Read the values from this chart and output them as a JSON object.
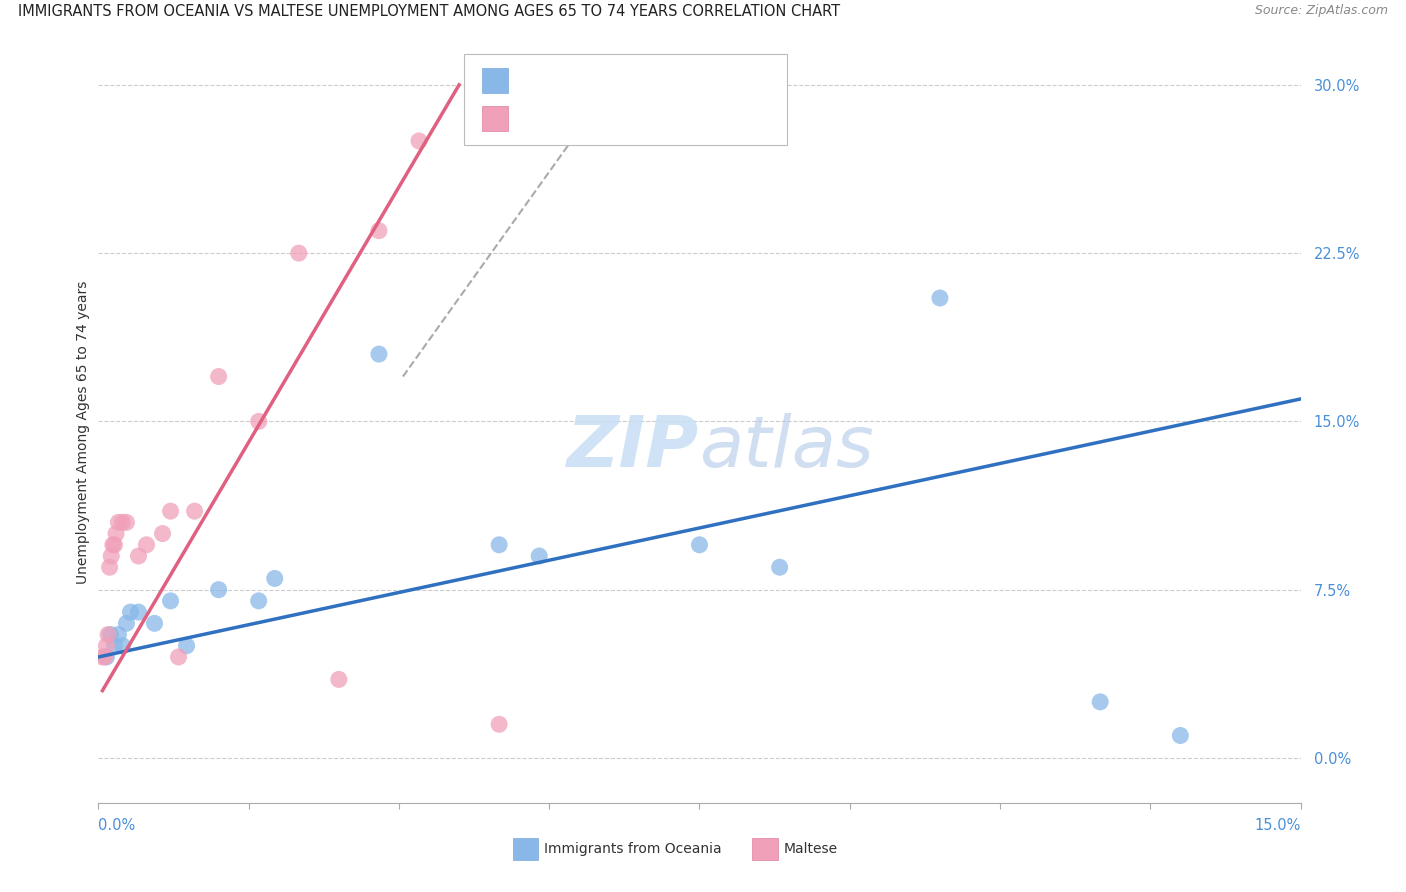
{
  "title": "IMMIGRANTS FROM OCEANIA VS MALTESE UNEMPLOYMENT AMONG AGES 65 TO 74 YEARS CORRELATION CHART",
  "source": "Source: ZipAtlas.com",
  "ylabel": "Unemployment Among Ages 65 to 74 years",
  "ytick_vals": [
    0.0,
    7.5,
    15.0,
    22.5,
    30.0
  ],
  "xlim": [
    0.0,
    15.0
  ],
  "ylim": [
    -2.0,
    31.0
  ],
  "blue_color": "#89B8E8",
  "pink_color": "#F0A0B8",
  "blue_line_color": "#3070C0",
  "pink_line_color": "#E06080",
  "watermark_color": "#C8DFF5",
  "blue_scatter_x": [
    0.1,
    0.15,
    0.2,
    0.25,
    0.3,
    0.35,
    0.4,
    0.5,
    0.7,
    0.9,
    1.1,
    1.5,
    2.0,
    2.2,
    3.5,
    5.0,
    5.5,
    7.5,
    8.5,
    10.5,
    12.5,
    13.5
  ],
  "blue_scatter_y": [
    4.5,
    5.5,
    5.0,
    5.5,
    5.0,
    6.0,
    6.5,
    6.5,
    6.0,
    7.0,
    5.0,
    7.5,
    7.0,
    8.0,
    18.0,
    9.5,
    9.0,
    9.5,
    8.5,
    20.5,
    2.5,
    1.0
  ],
  "pink_scatter_x": [
    0.05,
    0.08,
    0.1,
    0.12,
    0.14,
    0.16,
    0.18,
    0.2,
    0.22,
    0.25,
    0.3,
    0.35,
    0.5,
    0.6,
    0.8,
    0.9,
    1.0,
    1.2,
    1.5,
    2.0,
    2.5,
    3.0,
    3.5,
    4.0,
    5.0
  ],
  "pink_scatter_y": [
    4.5,
    4.5,
    5.0,
    5.5,
    8.5,
    9.0,
    9.5,
    9.5,
    10.0,
    10.5,
    10.5,
    10.5,
    9.0,
    9.5,
    10.0,
    11.0,
    4.5,
    11.0,
    17.0,
    15.0,
    22.5,
    3.5,
    23.5,
    27.5,
    1.5
  ],
  "blue_line_x": [
    0.0,
    15.0
  ],
  "blue_line_y": [
    4.5,
    16.0
  ],
  "pink_line_x": [
    0.05,
    4.5
  ],
  "pink_line_y": [
    3.0,
    30.0
  ],
  "dashed_line_x": [
    3.8,
    6.5
  ],
  "dashed_line_y": [
    17.0,
    30.5
  ],
  "title_fontsize": 10.5,
  "source_fontsize": 9,
  "axis_label_fontsize": 10,
  "tick_fontsize": 10.5
}
